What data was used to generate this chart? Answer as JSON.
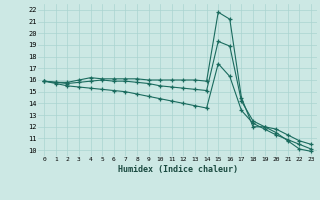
{
  "xlabel": "Humidex (Indice chaleur)",
  "bg_color": "#cce8e4",
  "line_color": "#1a6b5e",
  "grid_color": "#aad4d0",
  "x_ticks": [
    0,
    1,
    2,
    3,
    4,
    5,
    6,
    7,
    8,
    9,
    10,
    11,
    12,
    13,
    14,
    15,
    16,
    17,
    18,
    19,
    20,
    21,
    22,
    23
  ],
  "y_ticks": [
    10,
    11,
    12,
    13,
    14,
    15,
    16,
    17,
    18,
    19,
    20,
    21,
    22
  ],
  "xlim": [
    -0.5,
    23.5
  ],
  "ylim": [
    9.5,
    22.5
  ],
  "line1_x": [
    0,
    1,
    2,
    3,
    4,
    5,
    6,
    7,
    8,
    9,
    10,
    11,
    12,
    13,
    14,
    15,
    16,
    17,
    18,
    19,
    20,
    21,
    22,
    23
  ],
  "line1_y": [
    15.9,
    15.8,
    15.8,
    16.0,
    16.2,
    16.1,
    16.1,
    16.1,
    16.1,
    16.0,
    16.0,
    16.0,
    16.0,
    16.0,
    15.9,
    21.8,
    21.2,
    14.5,
    12.0,
    12.0,
    11.5,
    10.8,
    10.1,
    9.9
  ],
  "line2_x": [
    0,
    1,
    2,
    3,
    4,
    5,
    6,
    7,
    8,
    9,
    10,
    11,
    12,
    13,
    14,
    15,
    16,
    17,
    18,
    19,
    20,
    21,
    22,
    23
  ],
  "line2_y": [
    15.9,
    15.8,
    15.7,
    15.8,
    15.9,
    16.0,
    15.9,
    15.9,
    15.8,
    15.7,
    15.5,
    15.4,
    15.3,
    15.2,
    15.1,
    19.3,
    18.9,
    14.2,
    12.5,
    12.0,
    11.8,
    11.3,
    10.8,
    10.5
  ],
  "line3_x": [
    0,
    1,
    2,
    3,
    4,
    5,
    6,
    7,
    8,
    9,
    10,
    11,
    12,
    13,
    14,
    15,
    16,
    17,
    18,
    19,
    20,
    21,
    22,
    23
  ],
  "line3_y": [
    15.9,
    15.7,
    15.5,
    15.4,
    15.3,
    15.2,
    15.1,
    15.0,
    14.8,
    14.6,
    14.4,
    14.2,
    14.0,
    13.8,
    13.6,
    17.4,
    16.3,
    13.4,
    12.3,
    11.8,
    11.3,
    10.9,
    10.5,
    10.1
  ]
}
